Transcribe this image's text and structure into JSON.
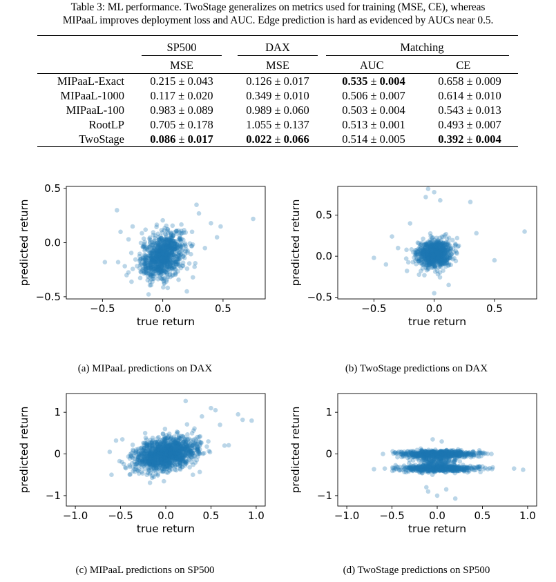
{
  "caption": {
    "line1": "Table 3: ML performance. TwoStage generalizes on metrics used for training (MSE, CE), whereas",
    "line2": "MIPaaL improves deployment loss and AUC. Edge prediction is hard as evidenced by AUCs near 0.5."
  },
  "table": {
    "groups": [
      "SP500",
      "DAX",
      "Matching"
    ],
    "columns": [
      "MSE",
      "MSE",
      "AUC",
      "CE"
    ],
    "rows": [
      {
        "method": "MIPaaL-Exact",
        "cells": [
          {
            "mean": "0.215",
            "std": "0.043",
            "bold": false
          },
          {
            "mean": "0.126",
            "std": "0.017",
            "bold": false
          },
          {
            "mean": "0.535",
            "std": "0.004",
            "bold": true
          },
          {
            "mean": "0.658",
            "std": "0.009",
            "bold": false
          }
        ]
      },
      {
        "method": "MIPaaL-1000",
        "cells": [
          {
            "mean": "0.117",
            "std": "0.020",
            "bold": false
          },
          {
            "mean": "0.349",
            "std": "0.010",
            "bold": false
          },
          {
            "mean": "0.506",
            "std": "0.007",
            "bold": false
          },
          {
            "mean": "0.614",
            "std": "0.010",
            "bold": false
          }
        ]
      },
      {
        "method": "MIPaaL-100",
        "cells": [
          {
            "mean": "0.983",
            "std": "0.089",
            "bold": false
          },
          {
            "mean": "0.989",
            "std": "0.060",
            "bold": false
          },
          {
            "mean": "0.503",
            "std": "0.004",
            "bold": false
          },
          {
            "mean": "0.543",
            "std": "0.013",
            "bold": false
          }
        ]
      },
      {
        "method": "RootLP",
        "cells": [
          {
            "mean": "0.705",
            "std": "0.178",
            "bold": false
          },
          {
            "mean": "1.055",
            "std": "0.137",
            "bold": false
          },
          {
            "mean": "0.513",
            "std": "0.001",
            "bold": false
          },
          {
            "mean": "0.493",
            "std": "0.007",
            "bold": false
          }
        ]
      },
      {
        "method": "TwoStage",
        "cells": [
          {
            "mean": "0.086",
            "std": "0.017",
            "bold": true
          },
          {
            "mean": "0.022",
            "std": "0.066",
            "bold": true
          },
          {
            "mean": "0.514",
            "std": "0.005",
            "bold": false
          },
          {
            "mean": "0.392",
            "std": "0.004",
            "bold": true
          }
        ]
      }
    ]
  },
  "chart_data": [
    {
      "type": "scatter",
      "subcaption": "(a) MIPaaL predictions on DAX",
      "xlabel": "true return",
      "ylabel": "predicted return",
      "xlim": [
        -0.8,
        0.85
      ],
      "ylim": [
        -0.52,
        0.52
      ],
      "xticks": [
        {
          "v": -0.5,
          "label": "−0.5"
        },
        {
          "v": 0,
          "label": "0.0"
        },
        {
          "v": 0.5,
          "label": "0.5"
        }
      ],
      "yticks": [
        {
          "v": -0.5,
          "label": "−0.5"
        },
        {
          "v": 0,
          "label": "0.0"
        },
        {
          "v": 0.5,
          "label": "0.5"
        }
      ],
      "grid": false,
      "color": "#1f77b4",
      "cloud": {
        "n": 900,
        "cx": 0.0,
        "cy": -0.12,
        "sx": 0.09,
        "sy": 0.11,
        "rho": 0.35
      },
      "points": [
        [
          0.75,
          0.22
        ],
        [
          -0.48,
          -0.18
        ],
        [
          -0.38,
          0.3
        ],
        [
          -0.35,
          0.1
        ],
        [
          -0.37,
          -0.18
        ],
        [
          -0.25,
          0.15
        ],
        [
          0.4,
          0.18
        ],
        [
          0.48,
          0.15
        ],
        [
          0.35,
          -0.05
        ],
        [
          0.3,
          0.27
        ],
        [
          0.28,
          0.35
        ],
        [
          0.25,
          -0.32
        ],
        [
          -0.3,
          -0.3
        ],
        [
          0.45,
          0.05
        ],
        [
          0.2,
          -0.45
        ]
      ]
    },
    {
      "type": "scatter",
      "subcaption": "(b) TwoStage predictions on DAX",
      "xlabel": "true return",
      "ylabel": "predicted return",
      "xlim": [
        -0.8,
        0.85
      ],
      "ylim": [
        -0.52,
        0.85
      ],
      "xticks": [
        {
          "v": -0.5,
          "label": "−0.5"
        },
        {
          "v": 0,
          "label": "0.0"
        },
        {
          "v": 0.5,
          "label": "0.5"
        }
      ],
      "yticks": [
        {
          "v": -0.5,
          "label": "−0.5"
        },
        {
          "v": 0,
          "label": "0.0"
        },
        {
          "v": 0.5,
          "label": "0.5"
        }
      ],
      "grid": false,
      "color": "#1f77b4",
      "cloud": {
        "n": 850,
        "cx": 0.0,
        "cy": 0.03,
        "sx": 0.07,
        "sy": 0.08,
        "rho": 0.1
      },
      "points": [
        [
          -0.05,
          0.82
        ],
        [
          0.0,
          0.78
        ],
        [
          -0.07,
          0.72
        ],
        [
          0.05,
          0.68
        ],
        [
          0.3,
          0.66
        ],
        [
          0.75,
          0.3
        ],
        [
          -0.5,
          -0.02
        ],
        [
          -0.2,
          0.4
        ],
        [
          0.35,
          0.28
        ],
        [
          -0.35,
          0.24
        ],
        [
          0.5,
          -0.05
        ],
        [
          -0.4,
          -0.1
        ],
        [
          0.12,
          -0.35
        ],
        [
          0.0,
          -0.45
        ],
        [
          -0.3,
          0.1
        ]
      ]
    },
    {
      "type": "scatter",
      "subcaption": "(c) MIPaaL predictions on SP500",
      "xlabel": "true return",
      "ylabel": "predicted return",
      "xlim": [
        -1.1,
        1.1
      ],
      "ylim": [
        -1.25,
        1.45
      ],
      "xticks": [
        {
          "v": -1,
          "label": "−1.0"
        },
        {
          "v": -0.5,
          "label": "−0.5"
        },
        {
          "v": 0,
          "label": "0.0"
        },
        {
          "v": 0.5,
          "label": "0.5"
        },
        {
          "v": 1,
          "label": "1.0"
        }
      ],
      "yticks": [
        {
          "v": -1,
          "label": "−1"
        },
        {
          "v": 0,
          "label": "0"
        },
        {
          "v": 1,
          "label": "1"
        }
      ],
      "grid": false,
      "color": "#1f77b4",
      "cloud": {
        "n": 1400,
        "cx": 0.0,
        "cy": 0.0,
        "sx": 0.17,
        "sy": 0.2,
        "rho": 0.35
      },
      "points": [
        [
          0.8,
          0.95
        ],
        [
          0.85,
          0.82
        ],
        [
          0.95,
          0.8
        ],
        [
          0.5,
          1.1
        ],
        [
          0.55,
          1.05
        ],
        [
          0.22,
          1.27
        ],
        [
          0.4,
          0.9
        ],
        [
          -0.6,
          -0.5
        ],
        [
          -0.55,
          0.32
        ],
        [
          -0.48,
          0.35
        ],
        [
          0.6,
          0.7
        ],
        [
          0.3,
          -0.5
        ],
        [
          -0.2,
          -0.45
        ],
        [
          0.65,
          0.2
        ],
        [
          -0.62,
          0.05
        ]
      ]
    },
    {
      "type": "scatter",
      "subcaption": "(d) TwoStage predictions on SP500",
      "xlabel": "true return",
      "ylabel": "predicted return",
      "xlim": [
        -1.1,
        1.1
      ],
      "ylim": [
        -1.25,
        1.45
      ],
      "xticks": [
        {
          "v": -1,
          "label": "−1.0"
        },
        {
          "v": -0.5,
          "label": "−0.5"
        },
        {
          "v": 0,
          "label": "0.0"
        },
        {
          "v": 0.5,
          "label": "0.5"
        },
        {
          "v": 1,
          "label": "1.0"
        }
      ],
      "yticks": [
        {
          "v": -1,
          "label": "−1"
        },
        {
          "v": 0,
          "label": "0"
        },
        {
          "v": 1,
          "label": "1"
        }
      ],
      "grid": false,
      "color": "#1f77b4",
      "bands": [
        {
          "n": 650,
          "cx": 0.0,
          "cy": 0.0,
          "sx": 0.2,
          "sy": 0.04
        },
        {
          "n": 550,
          "cx": 0.0,
          "cy": -0.35,
          "sx": 0.22,
          "sy": 0.04
        },
        {
          "n": 200,
          "cx": 0.0,
          "cy": -0.15,
          "sx": 0.12,
          "sy": 0.09
        }
      ],
      "points": [
        [
          0.85,
          -0.35
        ],
        [
          0.95,
          -0.38
        ],
        [
          -0.58,
          -0.35
        ],
        [
          -0.6,
          0.0
        ],
        [
          0.6,
          0.0
        ],
        [
          -0.1,
          -0.9
        ],
        [
          0.0,
          -1.0
        ],
        [
          0.2,
          -1.07
        ],
        [
          -0.05,
          0.35
        ],
        [
          0.05,
          0.3
        ],
        [
          -0.12,
          -0.8
        ],
        [
          0.1,
          -0.85
        ]
      ]
    }
  ]
}
